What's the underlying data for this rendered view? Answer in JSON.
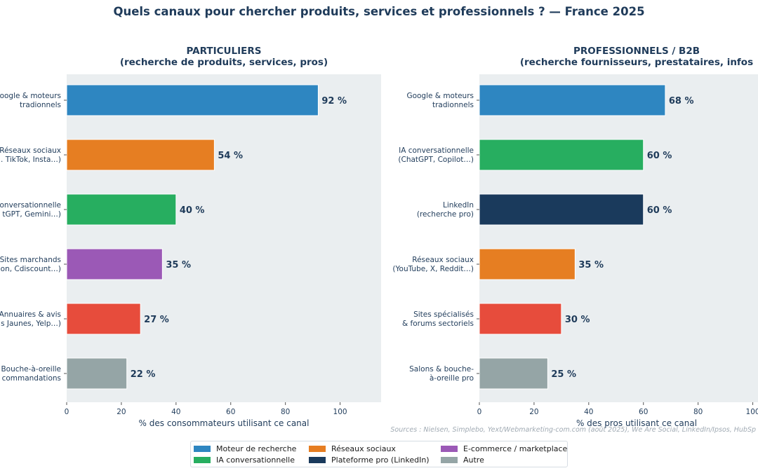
{
  "title": "Quels canaux pour chercher produits, services et professionnels ? — France 2025",
  "source": "Sources : Nielsen, Simplebo, Yext/Webmarketing-com.com (août 2025), We Are Social, LinkedIn/Ipsos, HubSp",
  "chart_data": [
    {
      "type": "bar",
      "orientation": "horizontal",
      "title": "PARTICULIERS\n(recherche de produits, services, pros)",
      "xlabel": "% des consommateurs utilisant ce canal",
      "xlim": [
        0,
        115
      ],
      "xticks": [
        0,
        20,
        40,
        60,
        80,
        100
      ],
      "grid": false,
      "categories": [
        "oogle & moteurs\ntradionnels",
        "Réseaux sociaux\n. TikTok, Insta…)",
        "onversationnelle\ntGPT, Gemini…)",
        "Sites marchands\non, Cdiscount…)",
        "Annuaires & avis\ns Jaunes, Yelp…)",
        "Bouche-à-oreille\ncommandations"
      ],
      "values": [
        92,
        54,
        40,
        35,
        27,
        22
      ],
      "data_labels": [
        "92 %",
        "54 %",
        "40 %",
        "35 %",
        "27 %",
        "22 %"
      ],
      "colors": [
        "#2e86c1",
        "#e67e22",
        "#27ae60",
        "#9b59b6",
        "#e74c3c",
        "#95a5a6"
      ]
    },
    {
      "type": "bar",
      "orientation": "horizontal",
      "title": "PROFESSIONNELS / B2B\n(recherche fournisseurs, prestataires, infos",
      "xlabel": "% des pros utilisant ce canal",
      "xlim": [
        0,
        115
      ],
      "xticks": [
        0,
        20,
        40,
        60,
        80,
        100
      ],
      "grid": false,
      "categories": [
        "Google & moteurs\ntradionnels",
        "IA conversationnelle\n(ChatGPT, Copilot…)",
        "LinkedIn\n(recherche pro)",
        "Réseaux sociaux\n(YouTube, X, Reddit…)",
        "Sites spécialisés\n& forums sectoriels",
        "Salons & bouche-\nà-oreille pro"
      ],
      "values": [
        68,
        60,
        60,
        35,
        30,
        25
      ],
      "data_labels": [
        "68 %",
        "60 %",
        "60 %",
        "35 %",
        "30 %",
        "25 %"
      ],
      "colors": [
        "#2e86c1",
        "#27ae60",
        "#1a3a5c",
        "#e67e22",
        "#e74c3c",
        "#95a5a6"
      ]
    }
  ],
  "legend": [
    {
      "label": "Moteur de recherche",
      "color": "#2e86c1"
    },
    {
      "label": "IA conversationnelle",
      "color": "#27ae60"
    },
    {
      "label": "Réseaux sociaux",
      "color": "#e67e22"
    },
    {
      "label": "Plateforme pro (LinkedIn)",
      "color": "#1a3a5c"
    },
    {
      "label": "E-commerce / marketplace",
      "color": "#9b59b6"
    },
    {
      "label": "Autre",
      "color": "#95a5a6"
    }
  ]
}
